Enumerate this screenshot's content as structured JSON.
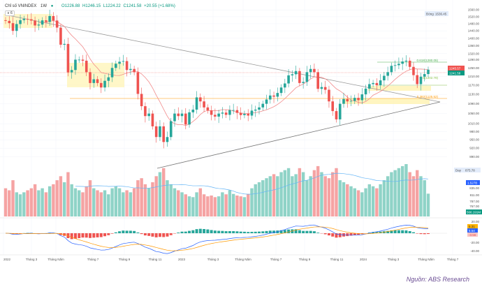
{
  "header": {
    "symbol": "Chỉ số VNINDEX",
    "interval": "1W",
    "open": "O1226.88",
    "high": "H1246.15",
    "low": "L1224.22",
    "close": "C1241.58",
    "change": "+20.55 (+1.68%)",
    "collapse_label": "∨ 6"
  },
  "price_labels": {
    "current": "1245.57",
    "close": "1241.58",
    "high_tag_label": "Đóng",
    "high_tag_value": "1536.45",
    "vol_tag_label": "Day",
    "vol_tag_value": "875.78"
  },
  "fib_labels": {
    "f618": "0.618(1280.05)",
    "f50": "0.5(1202.79)",
    "f382": "0.382(1125.52)"
  },
  "indicator_labels": {
    "vol_ma": "1.527B",
    "volume": "566.191M",
    "macd": "5.31",
    "signal": "5.54",
    "hist": "-3.56"
  },
  "colors": {
    "up": "#26a69a",
    "down": "#ef5350",
    "ma": "#f28b8b",
    "zone": "#fff3b0",
    "trend": "#888888",
    "fib618": "#4caf50",
    "fib50": "#8bc34a",
    "fib382": "#ff9800",
    "macd": "#2962ff",
    "signal": "#ff9800",
    "source": "#6a4c93"
  },
  "source": "Nguồn: ABS Research",
  "chart_data": {
    "type": "candlestick",
    "scale": "log",
    "grid": true,
    "y_ticks": [
      "1560.00",
      "1520.00",
      "1480.00",
      "1440.00",
      "1400.00",
      "1360.00",
      "1320.00",
      "1290.00",
      "1250.00",
      "1210.00",
      "1170.00",
      "1130.00",
      "1090.00",
      "1050.00",
      "1010.00",
      "980.00",
      "950.00",
      "920.00",
      "890.00"
    ],
    "volume_ticks": [
      "835.00",
      "811.00",
      "787.00",
      "767.00"
    ],
    "macd_ticks": [
      "20.00",
      "-20.00",
      "-40.00"
    ],
    "x_labels": [
      "2022",
      "Tháng 3",
      "Tháng Năm",
      "Tháng 7",
      "Tháng 9",
      "Tháng 11",
      "2023",
      "Tháng 3",
      "Tháng Năm",
      "Tháng 7",
      "Tháng 9",
      "Tháng 11",
      "2024",
      "Tháng 3",
      "Tháng Năm",
      "Tháng 7"
    ],
    "first_open": 1500,
    "close": [
      1496,
      1483,
      1440,
      1478,
      1500,
      1507,
      1505,
      1498,
      1470,
      1475,
      1499,
      1490,
      1524,
      1498,
      1458,
      1366,
      1370,
      1229,
      1240,
      1290,
      1290,
      1285,
      1230,
      1180,
      1197,
      1180,
      1160,
      1190,
      1206,
      1250,
      1270,
      1280,
      1283,
      1240,
      1245,
      1230,
      1132,
      1080,
      1040,
      1050,
      1000,
      960,
      1000,
      942,
      960,
      1020,
      1050,
      1040,
      1050,
      1007,
      1055,
      1066,
      1117,
      1100,
      1075,
      1063,
      1045,
      1038,
      1050,
      1054,
      1045,
      1064,
      1064,
      1053,
      1044,
      1049,
      1042,
      1062,
      1066,
      1075,
      1090,
      1108,
      1125,
      1120,
      1136,
      1160,
      1178,
      1215,
      1220,
      1235,
      1180,
      1185,
      1230,
      1245,
      1230,
      1154,
      1162,
      1150,
      1100,
      1060,
      1027,
      1090,
      1110,
      1100,
      1102,
      1115,
      1105,
      1130,
      1155,
      1175,
      1180,
      1170,
      1192,
      1213,
      1230,
      1260,
      1263,
      1270,
      1281,
      1285,
      1255,
      1216,
      1175,
      1209,
      1221,
      1241.58
    ],
    "volume": [
      700,
      650,
      900,
      600,
      550,
      600,
      650,
      700,
      800,
      650,
      700,
      600,
      750,
      800,
      900,
      1000,
      850,
      1100,
      800,
      700,
      650,
      600,
      750,
      900,
      700,
      650,
      600,
      650,
      550,
      700,
      750,
      700,
      600,
      650,
      600,
      700,
      900,
      950,
      800,
      700,
      850,
      1000,
      1100,
      1200,
      900,
      800,
      700,
      650,
      600,
      550,
      500,
      480,
      600,
      700,
      550,
      500,
      520,
      480,
      500,
      600,
      550,
      650,
      560,
      520,
      500,
      480,
      560,
      700,
      800,
      850,
      900,
      950,
      1000,
      1050,
      1000,
      1100,
      1150,
      1200,
      1000,
      1050,
      1200,
      1100,
      900,
      1000,
      1150,
      1250,
      1100,
      1000,
      950,
      1100,
      1200,
      900,
      850,
      800,
      750,
      700,
      650,
      600,
      700,
      800,
      750,
      700,
      800,
      900,
      1000,
      1100,
      1150,
      1200,
      1250,
      1300,
      1100,
      1000,
      1150,
      1000,
      900,
      566
    ]
  }
}
